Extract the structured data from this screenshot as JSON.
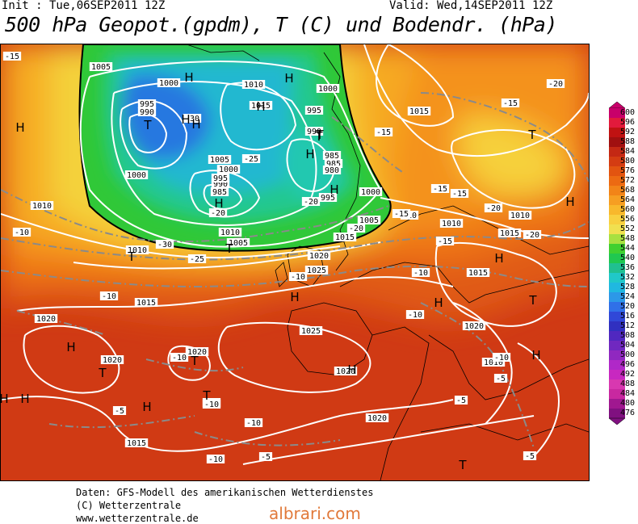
{
  "header": {
    "init": "Init : Tue,06SEP2011 12Z",
    "valid": "Valid: Wed,14SEP2011 12Z",
    "title": "500 hPa Geopot.(gpdm), T (C) und Bodendr. (hPa)"
  },
  "legend": {
    "levels": [
      "600",
      "596",
      "592",
      "588",
      "584",
      "580",
      "576",
      "572",
      "568",
      "564",
      "560",
      "556",
      "552",
      "548",
      "544",
      "540",
      "536",
      "532",
      "528",
      "524",
      "520",
      "516",
      "512",
      "508",
      "504",
      "500",
      "496",
      "492",
      "488",
      "484",
      "480",
      "476"
    ],
    "colors": [
      "#c8006a",
      "#e21a3c",
      "#c01212",
      "#a01010",
      "#c42814",
      "#d43c12",
      "#e25410",
      "#ec6a12",
      "#f28418",
      "#f69e22",
      "#f8b82c",
      "#f8d040",
      "#f0e050",
      "#a8e040",
      "#40d030",
      "#20c850",
      "#20c090",
      "#20c8c8",
      "#20b8e0",
      "#2c98e8",
      "#3070e8",
      "#3048d8",
      "#3030c0",
      "#5028c0",
      "#7028c0",
      "#9028c0",
      "#b028c8",
      "#c828c0",
      "#d838b0",
      "#c828a0",
      "#a01890",
      "#801080"
    ]
  },
  "map": {
    "pressure_labels": [
      "1005",
      "1000",
      "1010",
      "1015",
      "1000",
      "995",
      "990",
      "995",
      "1005",
      "1000",
      "985",
      "990",
      "995",
      "985",
      "990",
      "985",
      "980",
      "995",
      "1000",
      "1005",
      "1000",
      "1005",
      "1010",
      "1015",
      "1020",
      "1025",
      "1020",
      "1015",
      "1010",
      "1025",
      "1020",
      "1020",
      "1020",
      "1015",
      "1010",
      "1015",
      "1010",
      "1020",
      "1015",
      "1020",
      "1010",
      "1015",
      "1010"
    ],
    "temp_labels": [
      "-15",
      "-30",
      "-25",
      "-20",
      "-30",
      "-25",
      "-15",
      "-20",
      "-20",
      "-20",
      "-15",
      "-15",
      "-15",
      "-10",
      "-20",
      "-10",
      "-15",
      "-10",
      "-10",
      "-10",
      "-10",
      "-10",
      "-10",
      "-5",
      "-10",
      "-5",
      "-5",
      "-10",
      "-10",
      "-5",
      "-5",
      "-10",
      "-15",
      "-20"
    ],
    "pressure_centers": [
      "H",
      "H",
      "H",
      "H",
      "T",
      "H",
      "H",
      "H",
      "T",
      "H",
      "T",
      "H",
      "T",
      "H",
      "H",
      "H",
      "T",
      "T",
      "T",
      "H",
      "T",
      "H",
      "H",
      "H",
      "H",
      "T",
      "H",
      "H",
      "T",
      "T"
    ]
  },
  "footer": {
    "line1": "Daten: GFS-Modell des amerikanischen Wetterdienstes",
    "line2": "(C) Wetterzentrale",
    "line3": "www.wetterzentrale.de",
    "brand": "albrari.com"
  }
}
